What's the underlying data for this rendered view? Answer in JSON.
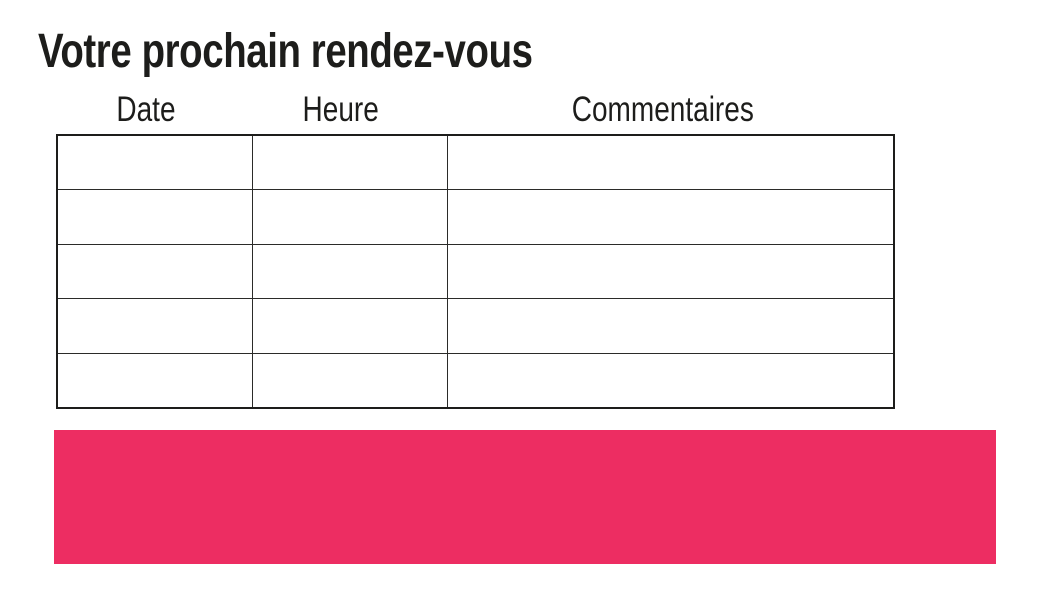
{
  "page": {
    "title": "Votre prochain rendez-vous",
    "background": "#ffffff"
  },
  "appointments_table": {
    "headers": [
      "Date",
      "Heure",
      "Commentaires"
    ],
    "rows": [
      [
        "",
        "",
        ""
      ],
      [
        "",
        "",
        ""
      ],
      [
        "",
        "",
        ""
      ],
      [
        "",
        "",
        ""
      ],
      [
        "",
        "",
        ""
      ]
    ]
  },
  "banner": {
    "color": "#ED2D62"
  },
  "colors": {
    "title_text": "#1D1D1B",
    "header_text": "#1D1D1B",
    "table_border": "#2B2B29"
  }
}
